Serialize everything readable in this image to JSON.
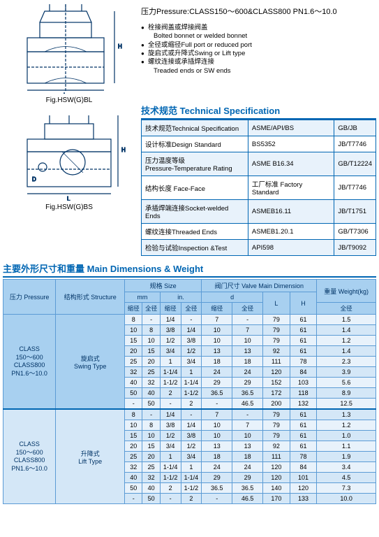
{
  "fig1_label": "Fig.HSW(G)BL",
  "fig2_label": "Fig.HSW(G)BS",
  "pressure_line": "压力Pressure:CLASS150～600&CLASS800   PN1.6～10.0",
  "bullets": [
    {
      "dot": true,
      "text": "栓接阀盖或焊接阀盖"
    },
    {
      "dot": false,
      "text": "Bolted bonnet or welded bonnet"
    },
    {
      "dot": true,
      "text": "全径或缩径Full port or reduced port"
    },
    {
      "dot": true,
      "text": "旋启式或升降式Swing or Lift type"
    },
    {
      "dot": true,
      "text": "螺纹连接或承插焊连接"
    },
    {
      "dot": false,
      "text": "Treaded ends or SW ends"
    }
  ],
  "tech_title": "技术规范   Technical Specification",
  "tech_rows": [
    [
      "技术规范Technical Specification",
      "ASME/API/BS",
      "GB/JB"
    ],
    [
      "设计标准Design Standard",
      "BS5352",
      "JB/T7746"
    ],
    [
      "压力温度等级\nPressure-Temperature Rating",
      "ASME B16.34",
      "GB/T12224"
    ],
    [
      "结构长度 Face-Face",
      "工厂标准 Factory Standard",
      "JB/T7746"
    ],
    [
      "承插焊端连接Socket-welded Ends",
      "ASMEB16.11",
      "JB/T1751"
    ],
    [
      "螺纹连接Threaded Ends",
      "ASMEB1.20.1",
      "GB/T7306"
    ],
    [
      "检验与试验Inspection &Test",
      "API598",
      "JB/T9092"
    ]
  ],
  "main_title": "主要外形尺寸和重量   Main Dimensions & Weight",
  "dim_header": {
    "pressure": "压力\nPressure",
    "structure": "结构形式\nStructure",
    "size": "规格 Size",
    "mm": "mm",
    "in": "in.",
    "valve_main": "阀门尺寸 Valve Main Dimension",
    "d": "d",
    "L": "L",
    "H": "H",
    "weight": "重量\nWeight(kg)",
    "red": "缩径",
    "full": "全径"
  },
  "groups": [
    {
      "pressure": "CLASS\n150～600\nCLASS800\nPN1.6～10.0",
      "structure": "旋启式\nSwing Type",
      "rows": [
        [
          "8",
          "-",
          "1/4",
          "-",
          "7",
          "-",
          "79",
          "61",
          "1.5"
        ],
        [
          "10",
          "8",
          "3/8",
          "1/4",
          "10",
          "7",
          "79",
          "61",
          "1.4"
        ],
        [
          "15",
          "10",
          "1/2",
          "3/8",
          "10",
          "10",
          "79",
          "61",
          "1.2"
        ],
        [
          "20",
          "15",
          "3/4",
          "1/2",
          "13",
          "13",
          "92",
          "61",
          "1.4"
        ],
        [
          "25",
          "20",
          "1",
          "3/4",
          "18",
          "18",
          "111",
          "78",
          "2.3"
        ],
        [
          "32",
          "25",
          "1-1/4",
          "1",
          "24",
          "24",
          "120",
          "84",
          "3.9"
        ],
        [
          "40",
          "32",
          "1-1/2",
          "1-1/4",
          "29",
          "29",
          "152",
          "103",
          "5.6"
        ],
        [
          "50",
          "40",
          "2",
          "1-1/2",
          "36.5",
          "36.5",
          "172",
          "118",
          "8.9"
        ],
        [
          "-",
          "50",
          "-",
          "2",
          "-",
          "46.5",
          "200",
          "132",
          "12.5"
        ]
      ]
    },
    {
      "pressure": "CLASS\n150～600\nCLASS800\nPN1.6～10.0",
      "structure": "升降式\nLift Type",
      "rows": [
        [
          "8",
          "-",
          "1/4",
          "-",
          "7",
          "-",
          "79",
          "61",
          "1.3"
        ],
        [
          "10",
          "8",
          "3/8",
          "1/4",
          "10",
          "7",
          "79",
          "61",
          "1.2"
        ],
        [
          "15",
          "10",
          "1/2",
          "3/8",
          "10",
          "10",
          "79",
          "61",
          "1.0"
        ],
        [
          "20",
          "15",
          "3/4",
          "1/2",
          "13",
          "13",
          "92",
          "61",
          "1.1"
        ],
        [
          "25",
          "20",
          "1",
          "3/4",
          "18",
          "18",
          "111",
          "78",
          "1.9"
        ],
        [
          "32",
          "25",
          "1-1/4",
          "1",
          "24",
          "24",
          "120",
          "84",
          "3.4"
        ],
        [
          "40",
          "32",
          "1-1/2",
          "1-1/4",
          "29",
          "29",
          "120",
          "101",
          "4.5"
        ],
        [
          "50",
          "40",
          "2",
          "1-1/2",
          "36.5",
          "36.5",
          "140",
          "120",
          "7.3"
        ],
        [
          "-",
          "50",
          "-",
          "2",
          "-",
          "46.5",
          "170",
          "133",
          "10.0"
        ]
      ]
    }
  ]
}
